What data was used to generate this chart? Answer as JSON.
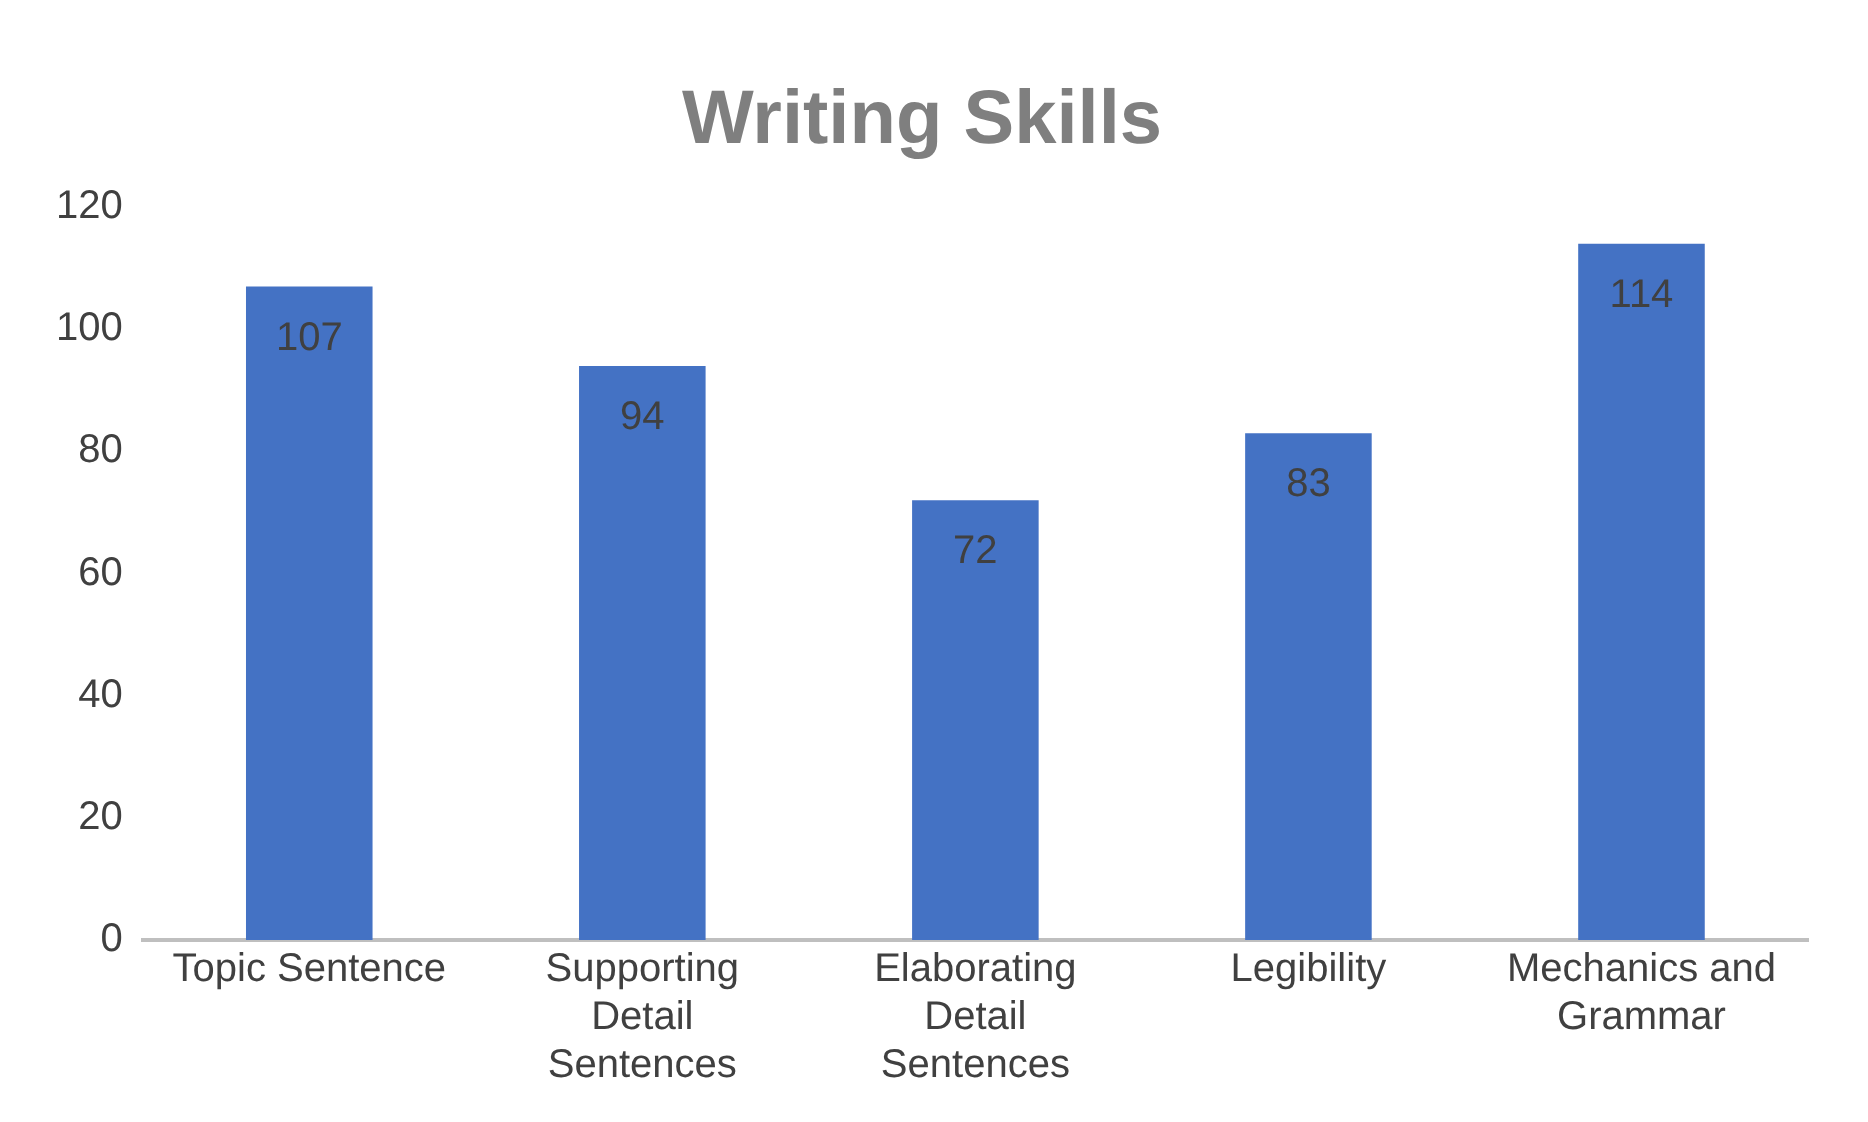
{
  "chart_data": {
    "type": "bar",
    "title": "Writing Skills",
    "categories": [
      "Topic Sentence",
      "Supporting Detail Sentences",
      "Elaborating Detail Sentences",
      "Legibility",
      "Mechanics and Grammar"
    ],
    "values": [
      107,
      94,
      72,
      83,
      114
    ],
    "color": "#4472c4",
    "ylim": [
      0,
      120
    ],
    "yticks": [
      0,
      20,
      40,
      60,
      80,
      100,
      120
    ],
    "grid": false,
    "legend": false,
    "data_labels": true
  }
}
